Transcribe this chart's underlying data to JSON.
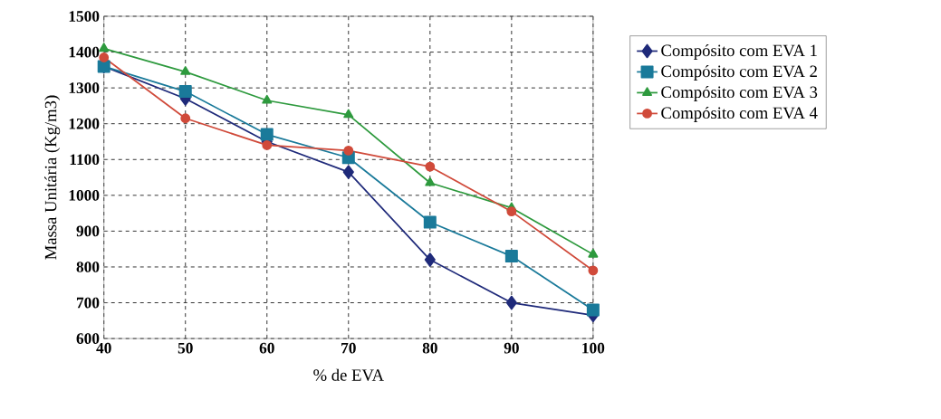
{
  "chart_data": {
    "type": "line",
    "xlabel": "% de EVA",
    "ylabel": "Massa Unitária (Kg/m3)",
    "x": [
      40,
      50,
      60,
      70,
      80,
      90,
      100
    ],
    "xlim": [
      40,
      100
    ],
    "xticks": [
      40,
      50,
      60,
      70,
      80,
      90,
      100
    ],
    "ylim": [
      600,
      1500
    ],
    "yticks": [
      600,
      700,
      800,
      900,
      1000,
      1100,
      1200,
      1300,
      1400,
      1500
    ],
    "grid": true,
    "legend": "right",
    "series": [
      {
        "name": "Compósito com EVA 1",
        "color": "#1f2a7a",
        "marker": "diamond",
        "values": [
          1360,
          1270,
          1150,
          1065,
          820,
          700,
          665
        ]
      },
      {
        "name": "Compósito com EVA 2",
        "color": "#1a7a9a",
        "marker": "square",
        "values": [
          1360,
          1290,
          1170,
          1105,
          925,
          830,
          680
        ]
      },
      {
        "name": "Compósito com EVA 3",
        "color": "#2e9a3e",
        "marker": "triangle",
        "values": [
          1410,
          1345,
          1265,
          1225,
          1035,
          965,
          835
        ]
      },
      {
        "name": "Compósito com EVA 4",
        "color": "#d04a3a",
        "marker": "circle",
        "values": [
          1385,
          1215,
          1140,
          1125,
          1080,
          955,
          790
        ]
      }
    ]
  }
}
